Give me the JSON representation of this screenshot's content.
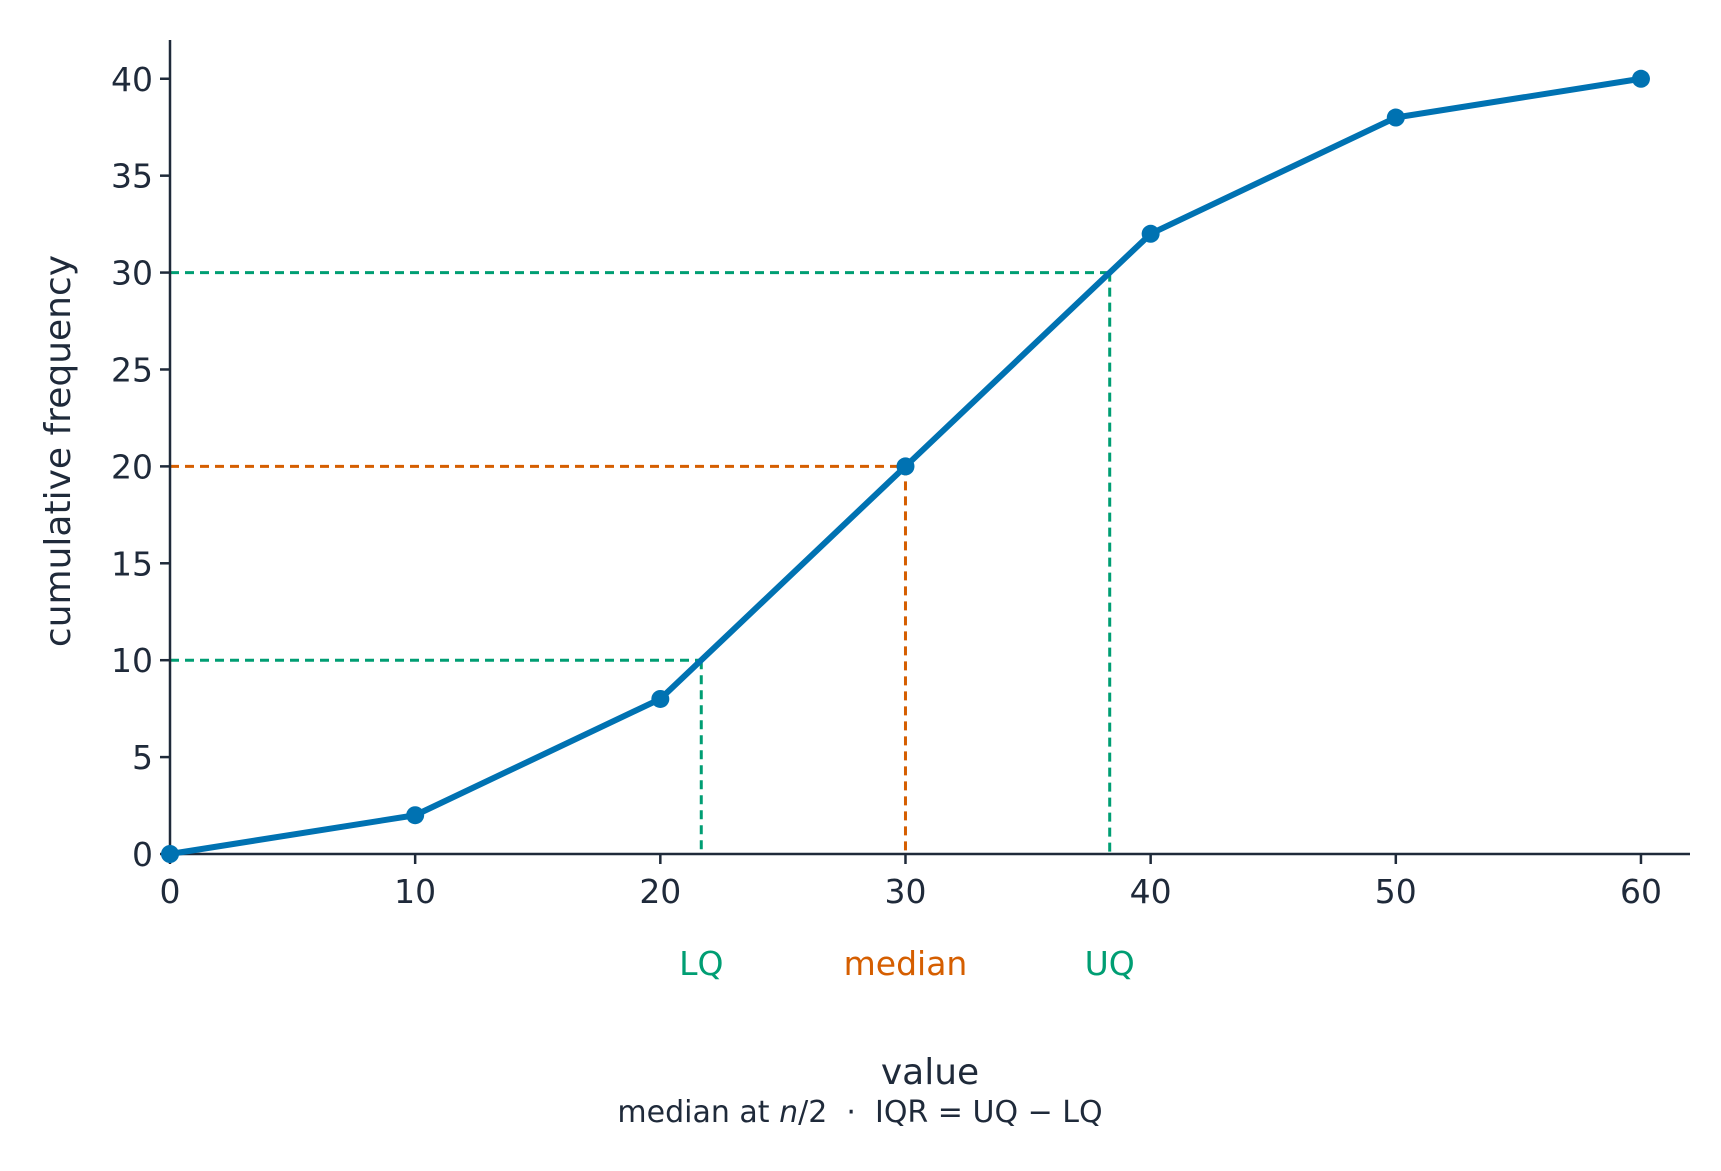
{
  "chart_data": {
    "type": "line",
    "xlabel": "value",
    "ylabel": "cumulative frequency",
    "xlim": [
      0,
      62
    ],
    "ylim": [
      0,
      42
    ],
    "xticks": [
      0,
      10,
      20,
      30,
      40,
      50,
      60
    ],
    "yticks": [
      0,
      5,
      10,
      15,
      20,
      25,
      30,
      35,
      40
    ],
    "grid": false,
    "series": [
      {
        "x": [
          0,
          10,
          20,
          30,
          40,
          50,
          60
        ],
        "y": [
          0,
          2,
          8,
          20,
          32,
          38,
          40
        ]
      }
    ],
    "guides": [
      {
        "label": "LQ",
        "y": 10,
        "x": 21.67,
        "color": "#009e73"
      },
      {
        "label": "median",
        "y": 20,
        "x": 30,
        "color": "#d55e00"
      },
      {
        "label": "UQ",
        "y": 30,
        "x": 38.33,
        "color": "#009e73"
      }
    ],
    "caption": {
      "part1": "median at ",
      "italic": "n",
      "part2": "/2  ·  IQR = UQ − LQ"
    }
  },
  "colors": {
    "line": "#0072b2",
    "axis": "#1f2a3a",
    "text": "#1f2a3a"
  }
}
